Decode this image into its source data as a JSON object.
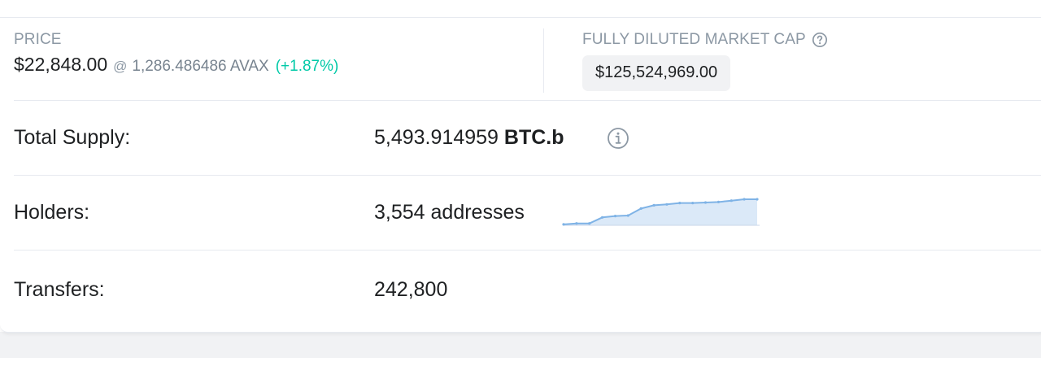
{
  "price": {
    "label": "PRICE",
    "value": "$22,848.00",
    "at_symbol": "@",
    "avax_value": "1,286.486486 AVAX",
    "change": "(+1.87%)",
    "change_color": "#00c9a7"
  },
  "market_cap": {
    "label": "FULLY DILUTED MARKET CAP",
    "help_icon": "question-circle-icon",
    "value": "$125,524,969.00"
  },
  "total_supply": {
    "label": "Total Supply:",
    "amount": "5,493.914959",
    "symbol": "BTC.b",
    "info_icon": "info-circle-icon"
  },
  "holders": {
    "label": "Holders:",
    "value": "3,554 addresses",
    "sparkline": {
      "type": "area",
      "line_color": "#7fb3e6",
      "fill_color": "#dbe9f8",
      "values": [
        2,
        4,
        4,
        17,
        20,
        21,
        36,
        43,
        45,
        48,
        48,
        49,
        50,
        53,
        56,
        56
      ]
    }
  },
  "transfers": {
    "label": "Transfers:",
    "value": "242,800"
  }
}
